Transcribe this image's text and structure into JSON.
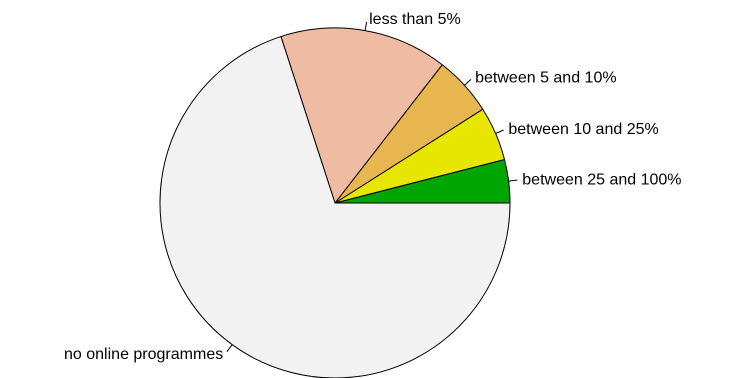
{
  "chart_data": {
    "type": "pie",
    "title": "",
    "start_angle_deg": 0,
    "direction": "counterclockwise",
    "legend": "none",
    "slices": [
      {
        "label": "between 25 and 100%",
        "value": 4,
        "color": "#00a600"
      },
      {
        "label": "between 10 and 25%",
        "value": 5,
        "color": "#e6e600"
      },
      {
        "label": "between 5 and 10%",
        "value": 5.5,
        "color": "#e8b64e"
      },
      {
        "label": "less than 5%",
        "value": 15.5,
        "color": "#efbba2"
      },
      {
        "label": "no online programmes",
        "value": 70,
        "color": "#f2f2f2"
      }
    ]
  }
}
